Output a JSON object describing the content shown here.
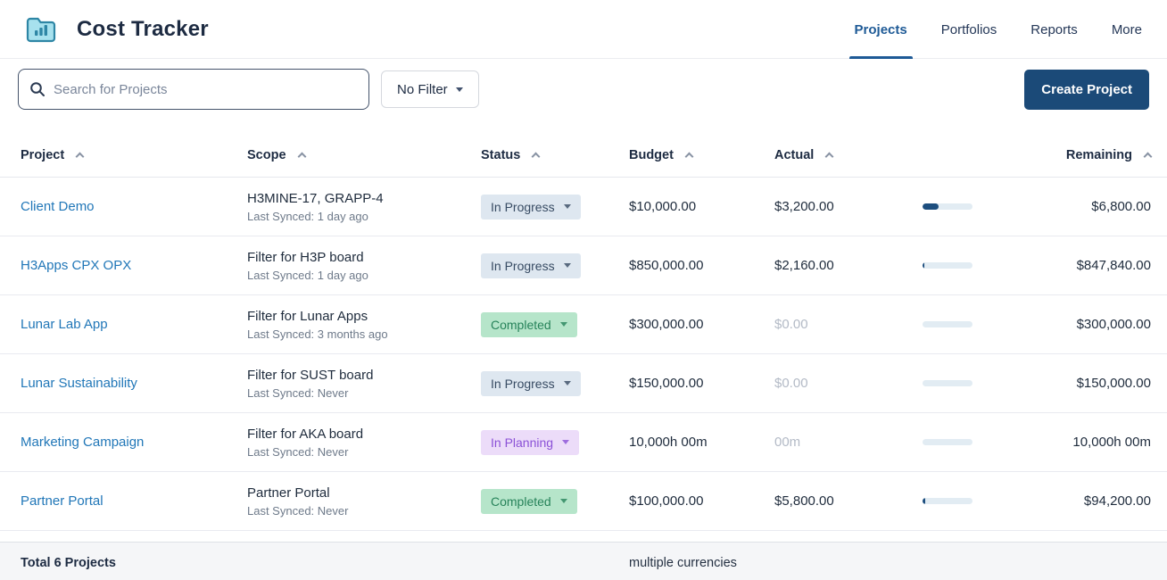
{
  "app": {
    "title": "Cost Tracker"
  },
  "nav": {
    "tabs": [
      {
        "label": "Projects",
        "active": true
      },
      {
        "label": "Portfolios",
        "active": false
      },
      {
        "label": "Reports",
        "active": false
      },
      {
        "label": "More",
        "active": false
      }
    ]
  },
  "toolbar": {
    "search_placeholder": "Search for Projects",
    "search_value": "",
    "filter_label": "No Filter",
    "create_button": "Create Project"
  },
  "table": {
    "columns": [
      {
        "label": "Project"
      },
      {
        "label": "Scope"
      },
      {
        "label": "Status"
      },
      {
        "label": "Budget"
      },
      {
        "label": "Actual"
      },
      {
        "label": ""
      },
      {
        "label": "Remaining"
      }
    ],
    "rows": [
      {
        "project": "Client Demo",
        "scope": "H3MINE-17, GRAPP-4",
        "last_synced": "Last Synced: 1 day ago",
        "status": "In Progress",
        "budget": "$10,000.00",
        "actual": "$3,200.00",
        "actual_muted": false,
        "progress_pct": 32,
        "remaining": "$6,800.00"
      },
      {
        "project": "H3Apps CPX OPX",
        "scope": "Filter for H3P board",
        "last_synced": "Last Synced: 1 day ago",
        "status": "In Progress",
        "budget": "$850,000.00",
        "actual": "$2,160.00",
        "actual_muted": false,
        "progress_pct": 2,
        "remaining": "$847,840.00"
      },
      {
        "project": "Lunar Lab App",
        "scope": "Filter for Lunar Apps",
        "last_synced": "Last Synced: 3 months ago",
        "status": "Completed",
        "budget": "$300,000.00",
        "actual": "$0.00",
        "actual_muted": true,
        "progress_pct": 0,
        "remaining": "$300,000.00"
      },
      {
        "project": "Lunar Sustainability",
        "scope": "Filter for SUST board",
        "last_synced": "Last Synced: Never",
        "status": "In Progress",
        "budget": "$150,000.00",
        "actual": "$0.00",
        "actual_muted": true,
        "progress_pct": 0,
        "remaining": "$150,000.00"
      },
      {
        "project": "Marketing Campaign",
        "scope": "Filter for AKA board",
        "last_synced": "Last Synced: Never",
        "status": "In Planning",
        "budget": "10,000h 00m",
        "actual": "00m",
        "actual_muted": true,
        "progress_pct": 0,
        "remaining": "10,000h 00m"
      },
      {
        "project": "Partner Portal",
        "scope": "Partner Portal",
        "last_synced": "Last Synced: Never",
        "status": "Completed",
        "budget": "$100,000.00",
        "actual": "$5,800.00",
        "actual_muted": false,
        "progress_pct": 6,
        "remaining": "$94,200.00"
      }
    ]
  },
  "footer": {
    "total_label": "Total 6 Projects",
    "currency_note": "multiple currencies"
  },
  "colors": {
    "accent_navy": "#1b4a78",
    "active_tab_blue": "#1e5a96",
    "link_blue": "#2177b8",
    "progress_track": "#e2ecf3",
    "progress_fill": "#1d4e7e",
    "status": {
      "In Progress": {
        "bg": "#dee7f0",
        "text": "#374b63"
      },
      "Completed": {
        "bg": "#b6e5ca",
        "text": "#27835a"
      },
      "In Planning": {
        "bg": "#ecdcf9",
        "text": "#8b51d7"
      }
    }
  }
}
